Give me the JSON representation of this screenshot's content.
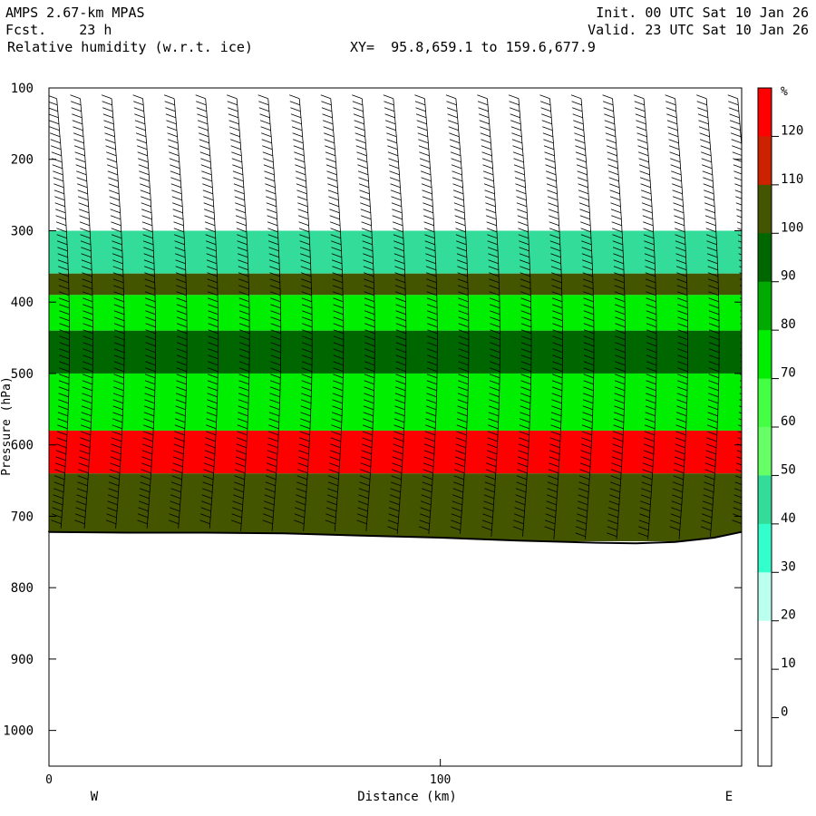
{
  "header": {
    "model": "AMPS 2.67-km MPAS",
    "fcst": "Fcst.    23 h",
    "field": "Relative humidity (w.r.t. ice)",
    "xy": "XY=  95.8,659.1 to 159.6,677.9",
    "init": "Init. 00 UTC Sat 10 Jan 26",
    "valid": "Valid. 23 UTC Sat 10 Jan 26"
  },
  "chart_data": {
    "type": "heatmap",
    "ylabel": "Pressure (hPa)",
    "xlabel": "Distance (km)",
    "x_range": [
      0,
      177
    ],
    "y_range_hPa": [
      1050,
      100
    ],
    "y_ticks": [
      100,
      200,
      300,
      400,
      500,
      600,
      700,
      800,
      900,
      1000
    ],
    "x_ticks": [
      0,
      100
    ],
    "x_tick_labels": [
      "0",
      "100"
    ],
    "west_label": "W",
    "east_label": "E",
    "grid": false,
    "terrain_surface": [
      {
        "km": 0,
        "hPa": 722
      },
      {
        "km": 20,
        "hPa": 723
      },
      {
        "km": 40,
        "hPa": 723
      },
      {
        "km": 60,
        "hPa": 724
      },
      {
        "km": 80,
        "hPa": 727
      },
      {
        "km": 100,
        "hPa": 730
      },
      {
        "km": 120,
        "hPa": 734
      },
      {
        "km": 140,
        "hPa": 737
      },
      {
        "km": 150,
        "hPa": 738
      },
      {
        "km": 160,
        "hPa": 736
      },
      {
        "km": 170,
        "hPa": 730
      },
      {
        "km": 177,
        "hPa": 722
      }
    ],
    "humidity_layers": [
      {
        "name": "moist layer 300-360",
        "min": 40,
        "top_hPa": 300,
        "bottom_hPa": 360
      },
      {
        "name": "band 360-390",
        "min": 100,
        "top_hPa": 360,
        "bottom_hPa": 390
      },
      {
        "name": "band 390-440",
        "min": 70,
        "top_hPa": 390,
        "bottom_hPa": 440
      },
      {
        "name": "band 440-500",
        "min": 90,
        "top_hPa": 440,
        "bottom_hPa": 500
      },
      {
        "name": "band 500-580",
        "min": 70,
        "top_hPa": 500,
        "bottom_hPa": 580
      },
      {
        "name": "band 580-640",
        "min": 120,
        "top_hPa": 580,
        "bottom_hPa": 640
      },
      {
        "name": "band 640-surface",
        "min": 100,
        "top_hPa": 640,
        "bottom_hPa": 735
      }
    ],
    "legend": {
      "placement": "right",
      "unit": "%",
      "levels": [
        "120",
        "110",
        "100",
        "90",
        "80",
        "70",
        "60",
        "50",
        "40",
        "30",
        "20",
        "10",
        "0"
      ],
      "colors": [
        "#ff0000",
        "#cc2200",
        "#445500",
        "#006600",
        "#00aa00",
        "#00ee00",
        "#44ff44",
        "#66ff66",
        "#33dd99",
        "#33ffcc",
        "#bbffee",
        "#ffffff",
        "#ffffff",
        "#ffffff"
      ]
    },
    "wind_barb_columns_km": [
      2,
      8,
      16,
      24,
      32,
      40,
      48,
      56,
      64,
      72,
      80,
      88,
      96,
      104,
      112,
      120,
      128,
      136,
      144,
      152,
      160,
      168,
      176
    ]
  }
}
